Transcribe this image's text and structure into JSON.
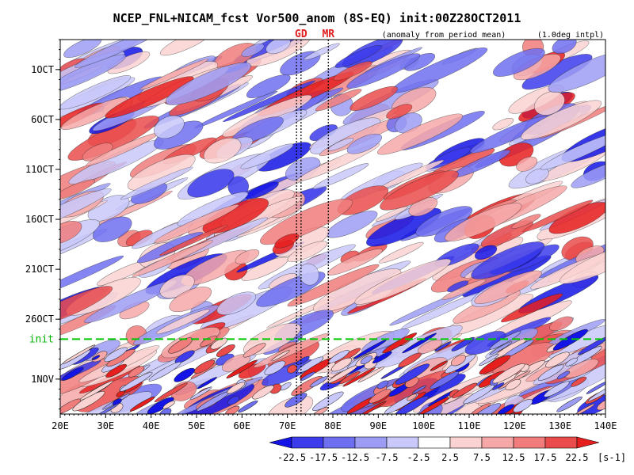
{
  "chart_data": {
    "type": "heatmap",
    "title": "NCEP_FNL+NICAM_fcst Vor500_anom (8S-EQ) init:00Z28OCT2011",
    "subtitle_left": "(anomaly from period mean)",
    "subtitle_right": "(1.0deg intpl)",
    "x_ticks": [
      "20E",
      "30E",
      "40E",
      "50E",
      "60E",
      "70E",
      "80E",
      "90E",
      "100E",
      "110E",
      "120E",
      "130E",
      "140E"
    ],
    "x_range": [
      20,
      140
    ],
    "y_ticks": [
      "1OCT",
      "6OCT",
      "11OCT",
      "16OCT",
      "21OCT",
      "26OCT",
      "1NOV"
    ],
    "y_tick_days": [
      1,
      6,
      11,
      16,
      21,
      26,
      32
    ],
    "y_range_days": [
      -2,
      35.5
    ],
    "init_label": "init",
    "init_day": 28,
    "markers": [
      {
        "label": "GD",
        "x": 73,
        "x2": 72
      },
      {
        "label": "MR",
        "x": 79
      }
    ],
    "colorbar": {
      "levels": [
        "-22.5",
        "-17.5",
        "-12.5",
        "-7.5",
        "-2.5",
        "2.5",
        "7.5",
        "12.5",
        "17.5",
        "22.5"
      ],
      "unit": "[s-1]",
      "colors": [
        "#1414e6",
        "#3c3cec",
        "#6e6ef0",
        "#9c9cf4",
        "#c8c8fa",
        "#ffffff",
        "#fad2d2",
        "#f6a8a8",
        "#f07c7c",
        "#ea4c4c",
        "#e61e1e"
      ]
    },
    "colors": {
      "init_line": "#00c800",
      "marker_text": "#e02020"
    }
  }
}
